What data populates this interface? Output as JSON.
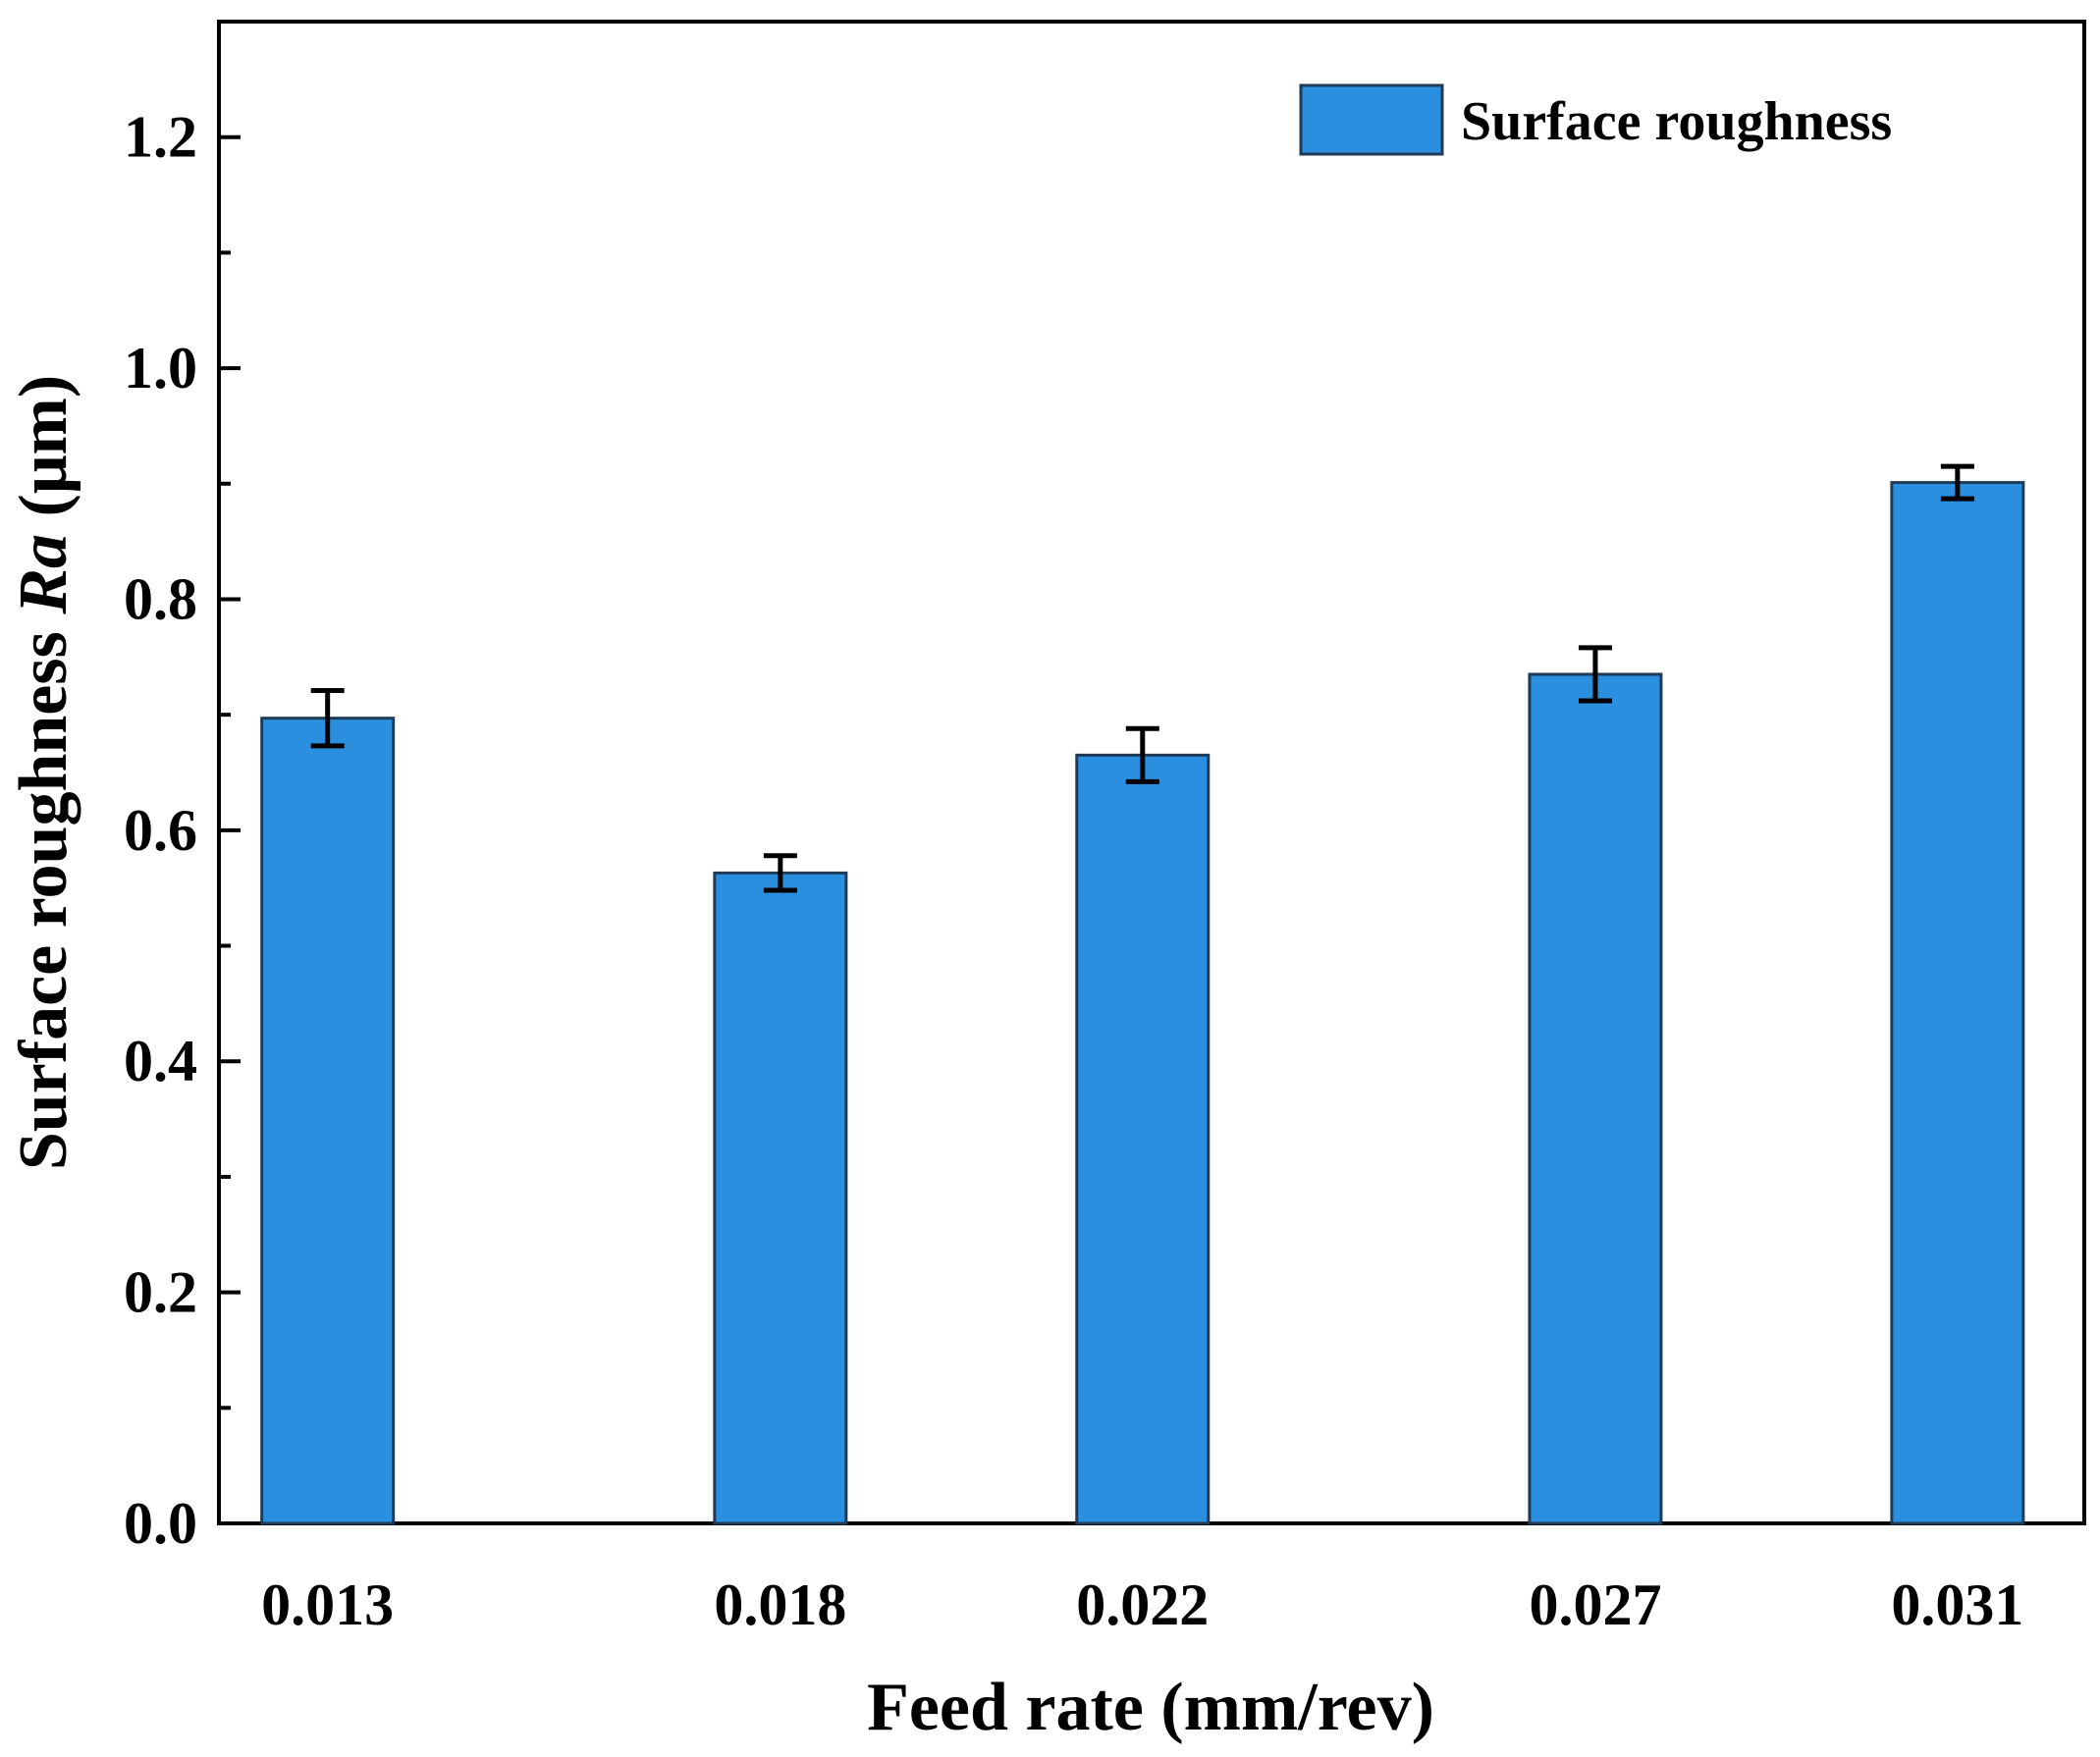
{
  "chart_data": {
    "type": "bar",
    "title": "",
    "xlabel": "Feed rate (mm/rev)",
    "ylabel_prefix": "Surface roughness ",
    "ylabel_italic": "Ra",
    "ylabel_suffix": " (μm)",
    "categories": [
      "0.013",
      "0.018",
      "0.022",
      "0.027",
      "0.031"
    ],
    "x": [
      0.013,
      0.018,
      0.022,
      0.027,
      0.031
    ],
    "xlim": [
      0.0118,
      0.0324
    ],
    "series": [
      {
        "name": "Surface roughness",
        "values": [
          0.697,
          0.563,
          0.665,
          0.735,
          0.901
        ],
        "errors": [
          0.024,
          0.015,
          0.023,
          0.023,
          0.014
        ],
        "color": "#2b8fe0"
      }
    ],
    "ylim": [
      0.0,
      1.3
    ],
    "yticks": [
      0.0,
      0.2,
      0.4,
      0.6,
      0.8,
      1.0,
      1.2
    ],
    "ytick_labels": [
      "0.0",
      "0.2",
      "0.4",
      "0.6",
      "0.8",
      "1.0",
      "1.2"
    ],
    "yminor": [
      0.1,
      0.3,
      0.5,
      0.7,
      0.9,
      1.1
    ],
    "legend": {
      "label": "Surface roughness",
      "position": "top-right"
    },
    "grid": false
  }
}
